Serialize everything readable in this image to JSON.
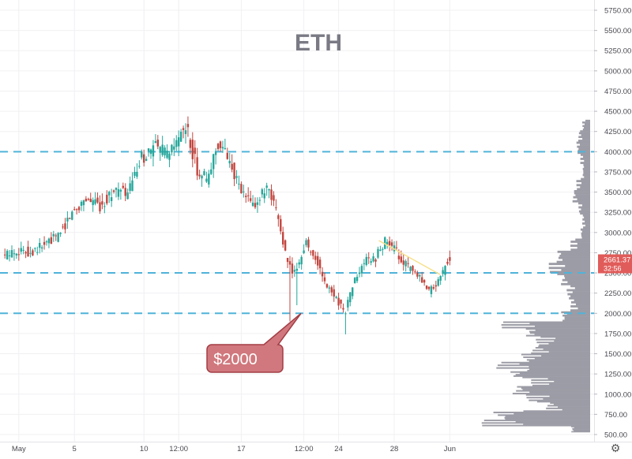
{
  "chart_data": {
    "type": "candlestick",
    "title": "ETH",
    "xlabel": "",
    "ylabel": "",
    "ylim": [
      480,
      5860
    ],
    "y_ticks": [
      500,
      750,
      1000,
      1250,
      1500,
      1750,
      2000,
      2250,
      2500,
      2750,
      3000,
      3250,
      3500,
      3750,
      4000,
      4250,
      4500,
      4750,
      5000,
      5250,
      5500,
      5750
    ],
    "y_tick_labels": [
      "500.00",
      "750.00",
      "1000.00",
      "1250.00",
      "1500.00",
      "1750.00",
      "2000.00",
      "2250.00",
      "2500.00",
      "2750.00",
      "3000.00",
      "3250.00",
      "3500.00",
      "3750.00",
      "4000.00",
      "4250.00",
      "4500.00",
      "4750.00",
      "5000.00",
      "5250.00",
      "5500.00",
      "5750.00"
    ],
    "x_tick_labels": [
      "May",
      "5",
      "10",
      "12:00",
      "17",
      "12:00",
      "24",
      "28",
      "Jun"
    ],
    "x_tick_days": [
      1,
      5,
      10,
      12.5,
      17,
      21.5,
      24,
      28,
      32
    ],
    "x_range_days": [
      -0.2,
      41.2
    ],
    "grid": true,
    "price_levels": [
      4000,
      2500,
      2000
    ],
    "current_price": {
      "value": 2661.37,
      "label": "2661.37",
      "countdown": "32:56"
    },
    "annotation": {
      "text": "$2000",
      "target_day": 21.3,
      "target_price": 2000
    },
    "trendline": {
      "from": {
        "day": 26.9,
        "price": 2900
      },
      "to": {
        "day": 31.3,
        "price": 2480
      }
    },
    "price_path": [
      {
        "day": 0,
        "price": 2700
      },
      {
        "day": 1,
        "price": 2780
      },
      {
        "day": 2,
        "price": 2760
      },
      {
        "day": 3,
        "price": 2850
      },
      {
        "day": 4,
        "price": 2960
      },
      {
        "day": 5,
        "price": 3250
      },
      {
        "day": 6,
        "price": 3430
      },
      {
        "day": 7,
        "price": 3330
      },
      {
        "day": 8,
        "price": 3520
      },
      {
        "day": 9,
        "price": 3480
      },
      {
        "day": 10,
        "price": 3920
      },
      {
        "day": 11,
        "price": 4060
      },
      {
        "day": 12,
        "price": 3950
      },
      {
        "day": 12.6,
        "price": 4150
      },
      {
        "day": 13.2,
        "price": 4300
      },
      {
        "day": 14,
        "price": 3780
      },
      {
        "day": 14.8,
        "price": 3640
      },
      {
        "day": 15.4,
        "price": 4120
      },
      {
        "day": 16.4,
        "price": 3880
      },
      {
        "day": 17,
        "price": 3540
      },
      {
        "day": 18,
        "price": 3330
      },
      {
        "day": 19,
        "price": 3530
      },
      {
        "day": 19.8,
        "price": 3200
      },
      {
        "day": 20.5,
        "price": 2600
      },
      {
        "day": 21,
        "price": 2500
      },
      {
        "day": 21.8,
        "price": 2880
      },
      {
        "day": 22.6,
        "price": 2650
      },
      {
        "day": 23.2,
        "price": 2350
      },
      {
        "day": 24,
        "price": 2200
      },
      {
        "day": 24.6,
        "price": 2000
      },
      {
        "day": 25.2,
        "price": 2360
      },
      {
        "day": 26,
        "price": 2630
      },
      {
        "day": 26.8,
        "price": 2680
      },
      {
        "day": 27.5,
        "price": 2900
      },
      {
        "day": 28.2,
        "price": 2780
      },
      {
        "day": 29,
        "price": 2600
      },
      {
        "day": 30,
        "price": 2420
      },
      {
        "day": 30.6,
        "price": 2260
      },
      {
        "day": 31.3,
        "price": 2380
      },
      {
        "day": 32,
        "price": 2661
      }
    ],
    "wicks": [
      {
        "day": 20.45,
        "low": 1900
      },
      {
        "day": 21.0,
        "low": 2100
      },
      {
        "day": 24.45,
        "low": 1740
      }
    ],
    "volume_profile": {
      "bins": [
        {
          "price": 4330,
          "w": 8
        },
        {
          "price": 4200,
          "w": 12
        },
        {
          "price": 4050,
          "w": 14
        },
        {
          "price": 3900,
          "w": 10
        },
        {
          "price": 3750,
          "w": 8
        },
        {
          "price": 3600,
          "w": 14
        },
        {
          "price": 3450,
          "w": 18
        },
        {
          "price": 3300,
          "w": 12
        },
        {
          "price": 3150,
          "w": 8
        },
        {
          "price": 3000,
          "w": 10
        },
        {
          "price": 2850,
          "w": 20
        },
        {
          "price": 2700,
          "w": 35
        },
        {
          "price": 2550,
          "w": 42
        },
        {
          "price": 2400,
          "w": 30
        },
        {
          "price": 2250,
          "w": 24
        },
        {
          "price": 2100,
          "w": 20
        },
        {
          "price": 1950,
          "w": 30
        },
        {
          "price": 1850,
          "w": 90
        },
        {
          "price": 1750,
          "w": 68
        },
        {
          "price": 1650,
          "w": 55
        },
        {
          "price": 1550,
          "w": 60
        },
        {
          "price": 1450,
          "w": 70
        },
        {
          "price": 1350,
          "w": 95
        },
        {
          "price": 1250,
          "w": 85
        },
        {
          "price": 1150,
          "w": 60
        },
        {
          "price": 1050,
          "w": 80
        },
        {
          "price": 950,
          "w": 65
        },
        {
          "price": 850,
          "w": 45
        },
        {
          "price": 750,
          "w": 100
        },
        {
          "price": 650,
          "w": 110
        },
        {
          "price": 560,
          "w": 20
        }
      ]
    },
    "colors": {
      "up": "#26a69a",
      "down": "#c2463f",
      "price_level": "#4fb3d9",
      "volume": "#9c9ca6",
      "trendline": "#f7e08a",
      "title": "#7a7a85",
      "annotation_fill": "#d0787d",
      "annotation_stroke": "#a33d45",
      "price_badge": "#e05c5a"
    }
  },
  "icons": {
    "settings": "gear-icon"
  }
}
